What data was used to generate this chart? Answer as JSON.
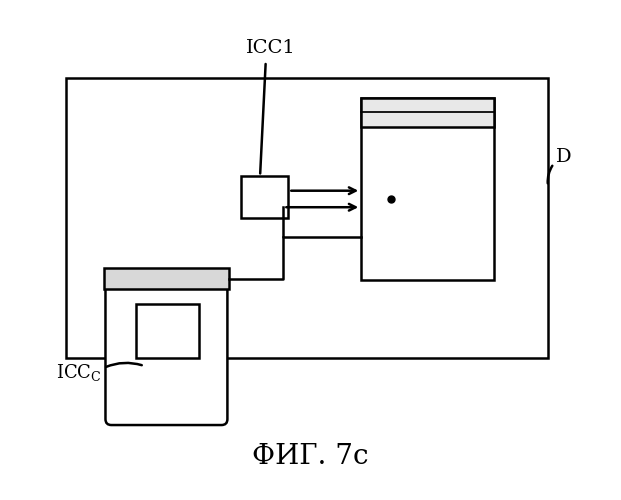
{
  "bg_color": "#ffffff",
  "title": "ФИГ. 7c",
  "title_fontsize": 20,
  "label_icc1": "ICC1",
  "label_d": "D",
  "line_color": "#000000",
  "lw": 1.8
}
